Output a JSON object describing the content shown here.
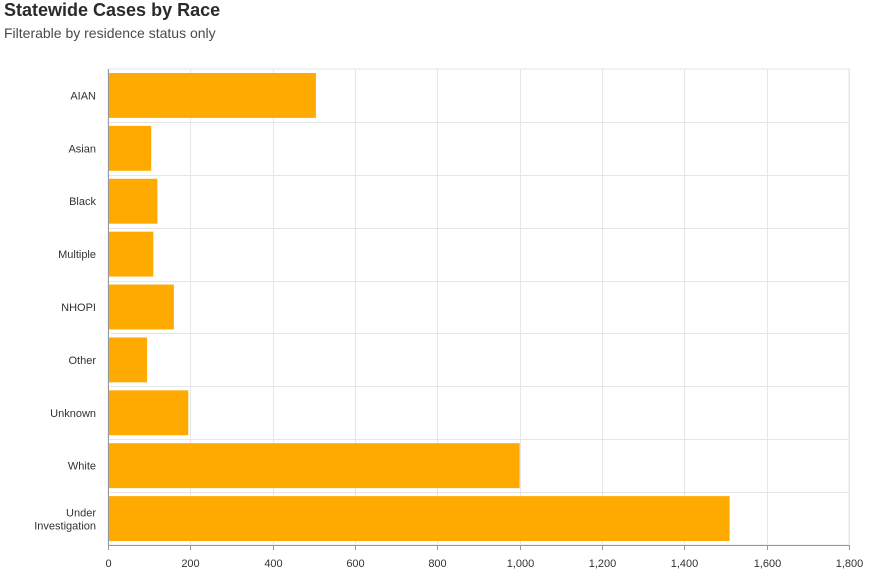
{
  "header": {
    "title": "Statewide Cases by Race",
    "subtitle": "Filterable by residence status only"
  },
  "colors": {
    "bar": "#FFAA00",
    "grid": "#e6e6e6",
    "axis": "#999999"
  },
  "chart_data": {
    "type": "bar",
    "orientation": "horizontal",
    "categories": [
      "AIAN",
      "Asian",
      "Black",
      "Multiple",
      "NHOPI",
      "Other",
      "Unknown",
      "White",
      "Under Investigation"
    ],
    "values": [
      505,
      105,
      120,
      110,
      160,
      95,
      195,
      1000,
      1510
    ],
    "xlim": [
      0,
      1800
    ],
    "xticks": [
      0,
      200,
      400,
      600,
      800,
      1000,
      1200,
      1400,
      1600,
      1800
    ],
    "xtick_labels": [
      "0",
      "200",
      "400",
      "600",
      "800",
      "1,000",
      "1,200",
      "1,400",
      "1,600",
      "1,800"
    ],
    "grid": true,
    "legend": "none"
  }
}
